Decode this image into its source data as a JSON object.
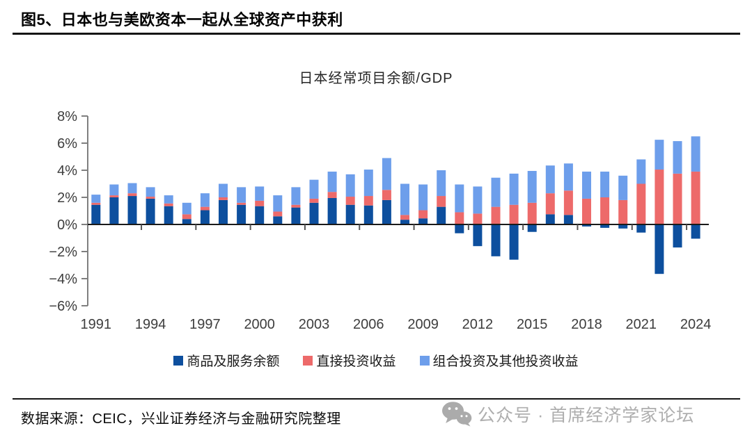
{
  "figure_title": "图5、日本也与美欧资本一起从全球资产中获利",
  "source": "数据来源：CEIC，兴业证券经济与金融研究院整理",
  "watermark": {
    "icon": "wechat-icon",
    "text": "公众号 · 首席经济学家论坛"
  },
  "chart_data": {
    "type": "bar",
    "stacked": true,
    "title": "日本经常项目余额/GDP",
    "grid": false,
    "legend_position": "bottom",
    "ylim": [
      -6,
      8
    ],
    "unit": "%",
    "y_ticks": [
      8,
      6,
      4,
      2,
      0,
      -2,
      -4,
      -6
    ],
    "y_tick_labels": [
      "8%",
      "6%",
      "4%",
      "2%",
      "0%",
      "−2%",
      "−4%",
      "−6%"
    ],
    "x_tick_labels": [
      "1991",
      "1994",
      "1997",
      "2000",
      "2003",
      "2006",
      "2009",
      "2012",
      "2015",
      "2018",
      "2021",
      "2024"
    ],
    "categories": [
      "1991",
      "1992",
      "1993",
      "1994",
      "1995",
      "1996",
      "1997",
      "1998",
      "1999",
      "2000",
      "2001",
      "2002",
      "2003",
      "2004",
      "2005",
      "2006",
      "2007",
      "2008",
      "2009",
      "2010",
      "2011",
      "2012",
      "2013",
      "2014",
      "2015",
      "2016",
      "2017",
      "2018",
      "2019",
      "2020",
      "2021",
      "2022",
      "2023",
      "2024"
    ],
    "series": [
      {
        "name": "商品及服务余额",
        "color": "#0d4f9e",
        "values": [
          1.45,
          2.0,
          2.1,
          1.9,
          1.35,
          0.4,
          1.05,
          1.8,
          1.45,
          1.35,
          0.6,
          1.25,
          1.6,
          1.95,
          1.45,
          1.4,
          1.8,
          0.35,
          0.45,
          1.3,
          -0.65,
          -1.6,
          -2.35,
          -2.6,
          -0.55,
          0.75,
          0.7,
          -0.15,
          -0.25,
          -0.3,
          -0.6,
          -3.65,
          -1.7,
          -1.05
        ]
      },
      {
        "name": "直接投资收益",
        "color": "#ed6a6a",
        "values": [
          0.15,
          0.15,
          0.2,
          0.15,
          0.2,
          0.35,
          0.25,
          0.2,
          0.15,
          0.4,
          0.35,
          0.2,
          0.3,
          0.45,
          0.6,
          0.7,
          0.75,
          0.35,
          0.6,
          0.8,
          0.9,
          0.8,
          1.3,
          1.45,
          1.6,
          1.55,
          1.8,
          1.9,
          2.0,
          1.8,
          3.0,
          4.05,
          3.75,
          3.9
        ]
      },
      {
        "name": "组合投资及其他投资收益",
        "color": "#6d9eeb",
        "values": [
          0.6,
          0.8,
          0.75,
          0.7,
          0.6,
          0.85,
          1.0,
          1.0,
          1.15,
          1.05,
          1.2,
          1.3,
          1.4,
          1.5,
          1.65,
          1.95,
          2.35,
          2.3,
          1.9,
          1.9,
          2.05,
          2.0,
          2.15,
          2.3,
          2.35,
          2.05,
          2.0,
          2.0,
          1.9,
          1.8,
          1.8,
          2.2,
          2.4,
          2.6
        ]
      }
    ]
  }
}
